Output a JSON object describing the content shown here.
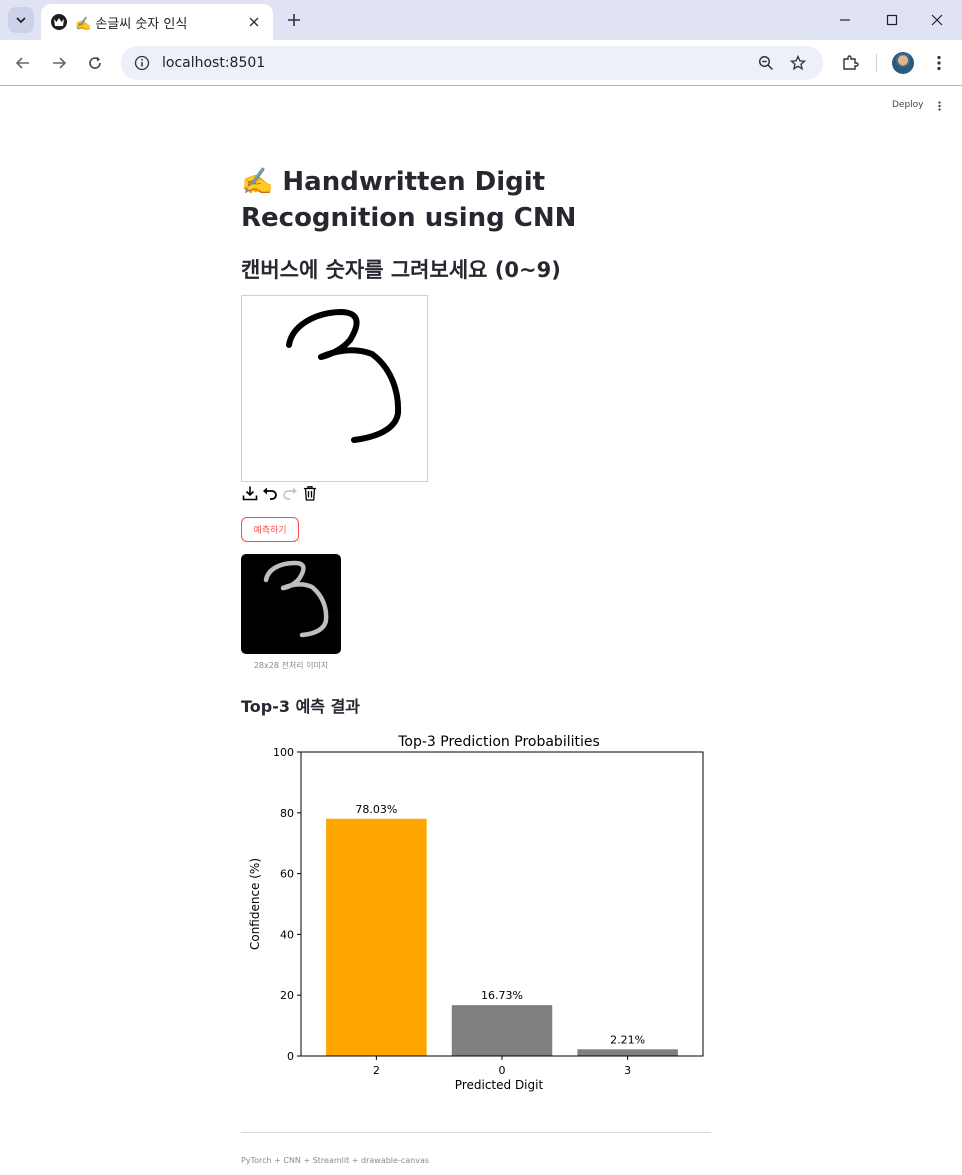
{
  "browser": {
    "tab_title": "✍️ 손글씨 숫자 인식",
    "url": "localhost:8501"
  },
  "app": {
    "deploy_label": "Deploy",
    "title": "✍️ Handwritten Digit Recognition using CNN",
    "subheader": "캔버스에 숫자를 그려보세요 (0~9)",
    "predict_button": "예측하기",
    "preview_caption": "28x28 전처리 이미지",
    "result_header": "Top-3 예측 결과",
    "footer": "PyTorch + CNN + Streamlit + drawable-canvas",
    "drawn_digit": "3"
  },
  "icons": {
    "tab_search": "chevron-down-icon",
    "favicon": "streamlit-crown-icon",
    "back": "arrow-left-icon",
    "forward": "arrow-right-icon",
    "reload": "reload-icon",
    "site_info": "info-icon",
    "zoom": "zoom-out-icon",
    "bookmark": "star-icon",
    "extensions": "puzzle-icon",
    "menu": "kebab-icon",
    "canvas_download": "download-icon",
    "canvas_undo": "undo-icon",
    "canvas_redo": "redo-icon",
    "canvas_clear": "trash-icon"
  },
  "colors": {
    "accent": "#ff4b4b",
    "top_bar": "#ffa500",
    "other_bars": "#808080"
  },
  "chart_data": {
    "type": "bar",
    "title": "Top-3 Prediction Probabilities",
    "xlabel": "Predicted Digit",
    "ylabel": "Confidence (%)",
    "categories": [
      "2",
      "0",
      "3"
    ],
    "values": [
      78.03,
      16.73,
      2.21
    ],
    "data_labels": [
      "78.03%",
      "16.73%",
      "2.21%"
    ],
    "bar_colors": [
      "#ffa500",
      "#808080",
      "#808080"
    ],
    "ylim": [
      0,
      100
    ],
    "yticks": [
      0,
      20,
      40,
      60,
      80,
      100
    ],
    "grid": false,
    "legend": "none"
  }
}
